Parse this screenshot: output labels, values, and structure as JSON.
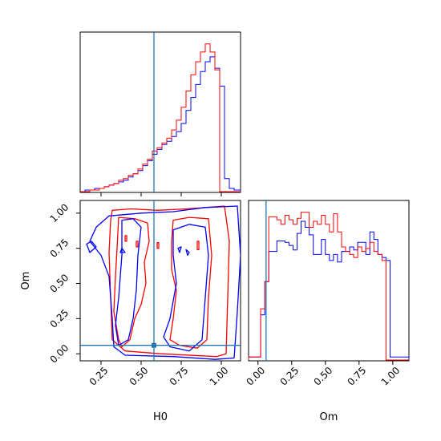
{
  "chart_data": {
    "type": "corner",
    "series": [
      {
        "name": "",
        "color": "#ff0000"
      },
      {
        "name": "",
        "color": "#0000ff"
      }
    ],
    "truth": {
      "H0": 0.58,
      "Om": 0.06,
      "color": "#1f77b4"
    },
    "panels": [
      {
        "id": "H0_hist",
        "type": "step_histogram",
        "xlim": [
          0.12,
          1.12
        ],
        "xticks": [
          0.25,
          0.5,
          0.75,
          1.0
        ],
        "bin_edges": [
          0.12,
          0.15,
          0.18,
          0.21,
          0.24,
          0.27,
          0.3,
          0.33,
          0.36,
          0.39,
          0.42,
          0.45,
          0.48,
          0.51,
          0.54,
          0.57,
          0.6,
          0.63,
          0.66,
          0.69,
          0.72,
          0.75,
          0.78,
          0.81,
          0.84,
          0.87,
          0.9,
          0.93,
          0.96,
          0.99,
          1.02,
          1.05,
          1.08,
          1.12
        ],
        "red_counts": [
          0,
          0,
          1,
          1,
          2,
          3,
          4,
          5,
          7,
          8,
          10,
          11,
          14,
          17,
          20,
          25,
          27,
          30,
          33,
          38,
          44,
          52,
          62,
          72,
          80,
          86,
          91,
          86,
          75,
          0,
          0,
          0,
          0
        ],
        "blue_counts": [
          0,
          1,
          1,
          2,
          2,
          3,
          4,
          5,
          6,
          7,
          9,
          11,
          13,
          16,
          19,
          23,
          26,
          29,
          31,
          34,
          37,
          42,
          50,
          58,
          66,
          74,
          80,
          83,
          76,
          65,
          8,
          2,
          1
        ]
      },
      {
        "id": "H0_Om_contour",
        "type": "contour",
        "xlabel": "H0",
        "ylabel": "Om",
        "xlim": [
          0.12,
          1.12
        ],
        "ylim": [
          -0.05,
          1.09
        ],
        "xticks": [
          0.25,
          0.5,
          0.75,
          1.0
        ],
        "xtick_labels": [
          "0.25",
          "0.50",
          "0.75",
          "1.00"
        ],
        "yticks": [
          0.0,
          0.25,
          0.5,
          0.75,
          1.0
        ],
        "ytick_labels": [
          "0.00",
          "0.25",
          "0.50",
          "0.75",
          "1.00"
        ],
        "contours": [
          {
            "series": "red",
            "points": [
              [
                0.32,
                1.02
              ],
              [
                0.44,
                1.03
              ],
              [
                0.6,
                1.02
              ],
              [
                0.78,
                1.03
              ],
              [
                0.9,
                1.04
              ],
              [
                1.02,
                1.05
              ],
              [
                1.05,
                0.8
              ],
              [
                1.04,
                0.4
              ],
              [
                1.03,
                0.0
              ],
              [
                0.97,
                -0.02
              ],
              [
                0.62,
                0.0
              ],
              [
                0.4,
                0.02
              ],
              [
                0.32,
                0.1
              ],
              [
                0.31,
                0.4
              ],
              [
                0.3,
                0.72
              ],
              [
                0.31,
                0.95
              ]
            ]
          },
          {
            "series": "red",
            "points": [
              [
                0.36,
                0.97
              ],
              [
                0.46,
                0.96
              ],
              [
                0.54,
                0.93
              ],
              [
                0.55,
                0.8
              ],
              [
                0.52,
                0.65
              ],
              [
                0.53,
                0.5
              ],
              [
                0.5,
                0.35
              ],
              [
                0.46,
                0.25
              ],
              [
                0.43,
                0.1
              ],
              [
                0.38,
                0.05
              ],
              [
                0.36,
                0.1
              ],
              [
                0.33,
                0.3
              ],
              [
                0.34,
                0.55
              ],
              [
                0.35,
                0.75
              ]
            ]
          },
          {
            "series": "red",
            "points": [
              [
                0.7,
                0.95
              ],
              [
                0.8,
                0.97
              ],
              [
                0.92,
                0.96
              ],
              [
                0.94,
                0.7
              ],
              [
                0.92,
                0.4
              ],
              [
                0.91,
                0.1
              ],
              [
                0.85,
                0.04
              ],
              [
                0.74,
                0.06
              ],
              [
                0.68,
                0.1
              ],
              [
                0.7,
                0.25
              ],
              [
                0.72,
                0.45
              ],
              [
                0.69,
                0.6
              ],
              [
                0.69,
                0.8
              ]
            ]
          },
          {
            "series": "red",
            "points": [
              [
                0.4,
                0.84
              ],
              [
                0.41,
                0.84
              ],
              [
                0.41,
                0.8
              ],
              [
                0.4,
                0.8
              ]
            ]
          },
          {
            "series": "red",
            "points": [
              [
                0.47,
                0.8
              ],
              [
                0.48,
                0.8
              ],
              [
                0.48,
                0.76
              ],
              [
                0.47,
                0.76
              ]
            ]
          },
          {
            "series": "red",
            "points": [
              [
                0.6,
                0.79
              ],
              [
                0.61,
                0.79
              ],
              [
                0.61,
                0.75
              ],
              [
                0.6,
                0.75
              ]
            ]
          },
          {
            "series": "red",
            "points": [
              [
                0.85,
                0.8
              ],
              [
                0.86,
                0.8
              ],
              [
                0.86,
                0.74
              ],
              [
                0.85,
                0.74
              ]
            ]
          },
          {
            "series": "blue",
            "points": [
              [
                0.22,
                0.9
              ],
              [
                0.3,
                0.98
              ],
              [
                0.5,
                1.0
              ],
              [
                0.7,
                1.01
              ],
              [
                0.9,
                1.04
              ],
              [
                1.1,
                1.05
              ],
              [
                1.12,
                0.7
              ],
              [
                1.1,
                0.3
              ],
              [
                1.08,
                -0.03
              ],
              [
                0.96,
                -0.04
              ],
              [
                0.7,
                -0.02
              ],
              [
                0.4,
                -0.01
              ],
              [
                0.33,
                0.05
              ],
              [
                0.32,
                0.25
              ],
              [
                0.3,
                0.55
              ],
              [
                0.25,
                0.7
              ],
              [
                0.18,
                0.8
              ]
            ]
          },
          {
            "series": "blue",
            "points": [
              [
                0.7,
                0.88
              ],
              [
                0.8,
                0.92
              ],
              [
                0.9,
                0.9
              ],
              [
                0.92,
                0.7
              ],
              [
                0.9,
                0.4
              ],
              [
                0.88,
                0.1
              ],
              [
                0.8,
                0.02
              ],
              [
                0.68,
                0.05
              ],
              [
                0.64,
                0.12
              ],
              [
                0.68,
                0.25
              ],
              [
                0.72,
                0.5
              ],
              [
                0.7,
                0.7
              ]
            ]
          },
          {
            "series": "blue",
            "points": [
              [
                0.38,
                0.95
              ],
              [
                0.45,
                0.96
              ],
              [
                0.5,
                0.9
              ],
              [
                0.48,
                0.7
              ],
              [
                0.47,
                0.45
              ],
              [
                0.45,
                0.25
              ],
              [
                0.42,
                0.1
              ],
              [
                0.36,
                0.06
              ],
              [
                0.34,
                0.2
              ],
              [
                0.36,
                0.4
              ],
              [
                0.38,
                0.7
              ]
            ]
          },
          {
            "series": "blue",
            "points": [
              [
                0.16,
                0.78
              ],
              [
                0.19,
                0.8
              ],
              [
                0.22,
                0.76
              ],
              [
                0.18,
                0.72
              ]
            ]
          },
          {
            "series": "blue",
            "points": [
              [
                0.38,
                0.75
              ],
              [
                0.4,
                0.72
              ],
              [
                0.37,
                0.72
              ]
            ]
          },
          {
            "series": "blue",
            "points": [
              [
                0.73,
                0.75
              ],
              [
                0.75,
                0.76
              ],
              [
                0.74,
                0.72
              ]
            ]
          },
          {
            "series": "blue",
            "points": [
              [
                0.78,
                0.74
              ],
              [
                0.8,
                0.72
              ],
              [
                0.79,
                0.7
              ]
            ]
          }
        ]
      },
      {
        "id": "Om_hist",
        "type": "step_histogram",
        "xlabel": "Om",
        "xlim": [
          -0.07,
          1.12
        ],
        "xticks": [
          0.0,
          0.25,
          0.5,
          0.75,
          1.0
        ],
        "xtick_labels": [
          "0.00",
          "0.25",
          "0.50",
          "0.75",
          "1.00"
        ],
        "bin_edges": [
          -0.07,
          -0.04,
          -0.01,
          0.02,
          0.05,
          0.08,
          0.11,
          0.14,
          0.17,
          0.2,
          0.23,
          0.26,
          0.29,
          0.32,
          0.35,
          0.38,
          0.41,
          0.44,
          0.47,
          0.5,
          0.53,
          0.56,
          0.59,
          0.62,
          0.65,
          0.68,
          0.71,
          0.74,
          0.77,
          0.8,
          0.83,
          0.86,
          0.89,
          0.92,
          0.95,
          0.98,
          1.01,
          1.04,
          1.07,
          1.12
        ],
        "red_counts": [
          2,
          2,
          2,
          34,
          52,
          95,
          95,
          93,
          90,
          96,
          93,
          90,
          94,
          98,
          98,
          88,
          92,
          90,
          96,
          90,
          85,
          97,
          85,
          75,
          72,
          70,
          68,
          75,
          72,
          74,
          78,
          72,
          70,
          66,
          0,
          0,
          0,
          0,
          0
        ],
        "blue_counts": [
          2,
          2,
          2,
          30,
          52,
          72,
          72,
          79,
          79,
          78,
          76,
          73,
          84,
          92,
          88,
          83,
          70,
          70,
          80,
          70,
          66,
          70,
          65,
          72,
          72,
          75,
          73,
          78,
          78,
          70,
          85,
          80,
          70,
          68,
          66,
          2,
          2,
          2,
          2
        ]
      }
    ]
  }
}
